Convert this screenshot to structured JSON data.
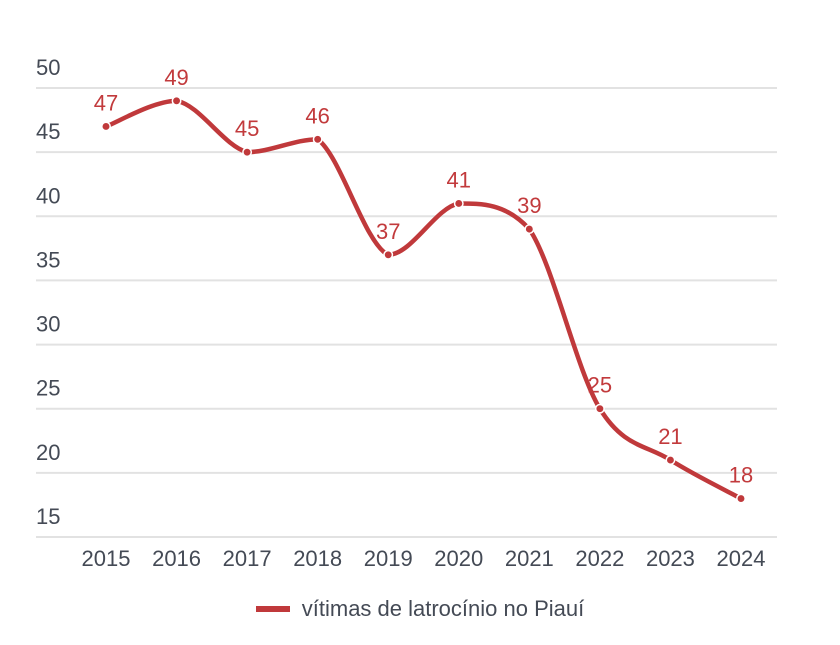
{
  "chart_data": {
    "type": "line",
    "title": "",
    "xlabel": "",
    "ylabel": "",
    "categories": [
      "2015",
      "2016",
      "2017",
      "2018",
      "2019",
      "2020",
      "2021",
      "2022",
      "2023",
      "2024"
    ],
    "series": [
      {
        "name": "vítimas de latrocínio no Piauí",
        "values": [
          47,
          49,
          45,
          46,
          37,
          41,
          39,
          25,
          21,
          18
        ],
        "color": "#c0393b",
        "smooth": true,
        "data_labels": true
      }
    ],
    "yticks": [
      15,
      20,
      25,
      30,
      35,
      40,
      45,
      50
    ],
    "ylim": [
      15,
      50
    ],
    "grid": true,
    "legend": {
      "position": "bottom-center",
      "entries": [
        "vítimas de latrocínio no Piauí"
      ]
    }
  }
}
